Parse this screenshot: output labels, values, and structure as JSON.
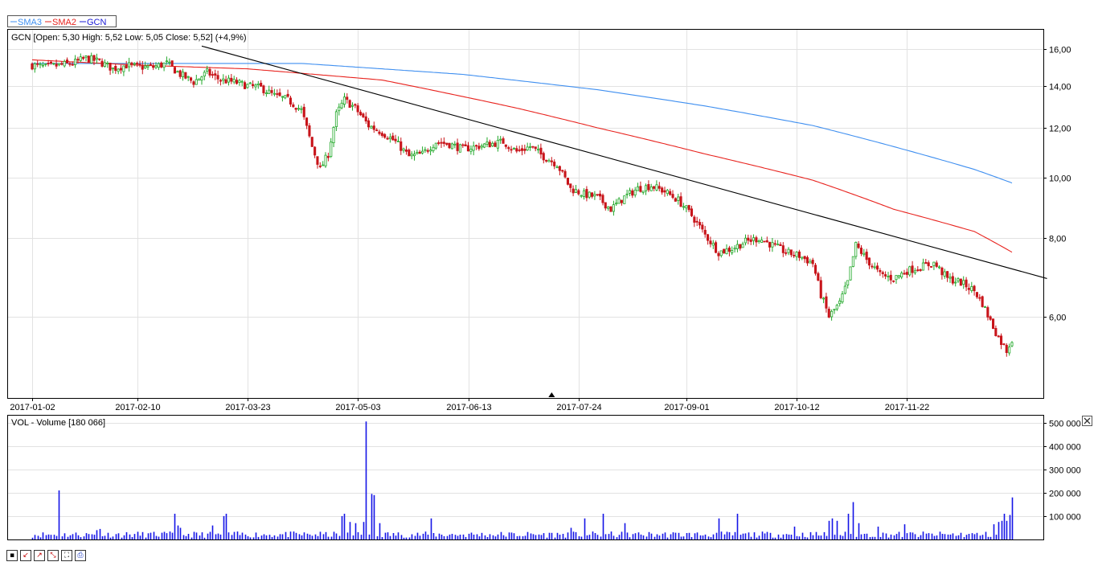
{
  "legend": {
    "items": [
      {
        "label": "SMA3",
        "color": "#3f8ff0"
      },
      {
        "label": "SMA2",
        "color": "#e8231e"
      },
      {
        "label": "GCN",
        "color": "#1b1bd6"
      }
    ]
  },
  "price_panel": {
    "header": "GCN [Open: 5,30  High: 5,52  Low: 5,05  Close: 5,52] (+4,9%)"
  },
  "volume_panel": {
    "header": "VOL - Volume [180 066]"
  },
  "toolbar": {
    "icons": [
      "save-icon",
      "zoom-in-icon",
      "zoom-out-icon",
      "zoom-reset-icon",
      "fit-icon",
      "print-icon"
    ]
  },
  "colors": {
    "up": "#22a82a",
    "down": "#c8141a",
    "volume": "#1414e6",
    "sma2": "#e8231e",
    "sma3": "#3f8ff0",
    "trend": "#000000",
    "grid": "#e2e2e2"
  },
  "chart_data": [
    {
      "type": "candlestick",
      "title": "GCN [Open: 5,30  High: 5,52  Low: 5,05  Close: 5,52] (+4,9%)",
      "scale": "log",
      "x_ticks": [
        "2017-01-02",
        "2017-02-10",
        "2017-03-23",
        "2017-05-03",
        "2017-06-13",
        "2017-07-24",
        "2017-09-01",
        "2017-10-12",
        "2017-11-22"
      ],
      "y_ticks": [
        "6,00",
        "8,00",
        "10,00",
        "12,00",
        "14,00",
        "16,00"
      ],
      "y_tick_values": [
        6,
        8,
        10,
        12,
        14,
        16
      ],
      "ylim": [
        4.45,
        17.2
      ],
      "close_anchors": [
        [
          0,
          15.1
        ],
        [
          5,
          15.0
        ],
        [
          10,
          15.1
        ],
        [
          15,
          15.2
        ],
        [
          20,
          15.5
        ],
        [
          25,
          15.3
        ],
        [
          30,
          14.9
        ],
        [
          35,
          15.1
        ],
        [
          40,
          15.0
        ],
        [
          45,
          15.0
        ],
        [
          50,
          15.2
        ],
        [
          55,
          14.6
        ],
        [
          60,
          14.2
        ],
        [
          65,
          14.7
        ],
        [
          70,
          14.3
        ],
        [
          75,
          14.2
        ],
        [
          80,
          14.0
        ],
        [
          85,
          13.9
        ],
        [
          90,
          13.5
        ],
        [
          95,
          13.3
        ],
        [
          100,
          12.8
        ],
        [
          104,
          11.2
        ],
        [
          107,
          10.3
        ],
        [
          110,
          10.9
        ],
        [
          113,
          12.6
        ],
        [
          116,
          13.3
        ],
        [
          120,
          12.9
        ],
        [
          125,
          12.1
        ],
        [
          130,
          11.8
        ],
        [
          135,
          11.4
        ],
        [
          140,
          10.8
        ],
        [
          145,
          10.9
        ],
        [
          150,
          11.4
        ],
        [
          155,
          11.3
        ],
        [
          160,
          11.1
        ],
        [
          165,
          11.2
        ],
        [
          170,
          11.3
        ],
        [
          175,
          11.4
        ],
        [
          180,
          11.0
        ],
        [
          185,
          11.2
        ],
        [
          190,
          10.8
        ],
        [
          195,
          10.5
        ],
        [
          200,
          9.6
        ],
        [
          205,
          9.4
        ],
        [
          210,
          9.3
        ],
        [
          215,
          8.9
        ],
        [
          220,
          9.3
        ],
        [
          225,
          9.6
        ],
        [
          230,
          9.7
        ],
        [
          235,
          9.5
        ],
        [
          240,
          9.2
        ],
        [
          245,
          8.7
        ],
        [
          250,
          8.1
        ],
        [
          255,
          7.6
        ],
        [
          260,
          7.7
        ],
        [
          265,
          7.9
        ],
        [
          270,
          8.0
        ],
        [
          275,
          7.8
        ],
        [
          280,
          7.6
        ],
        [
          285,
          7.5
        ],
        [
          290,
          7.3
        ],
        [
          293,
          6.5
        ],
        [
          296,
          6.0
        ],
        [
          300,
          6.3
        ],
        [
          303,
          6.8
        ],
        [
          306,
          7.8
        ],
        [
          310,
          7.4
        ],
        [
          315,
          7.0
        ],
        [
          320,
          6.9
        ],
        [
          325,
          7.1
        ],
        [
          330,
          7.2
        ],
        [
          335,
          7.3
        ],
        [
          340,
          6.9
        ],
        [
          345,
          6.8
        ],
        [
          350,
          6.6
        ],
        [
          353,
          6.3
        ],
        [
          356,
          5.9
        ],
        [
          359,
          5.55
        ],
        [
          362,
          5.3
        ],
        [
          364,
          5.52
        ]
      ],
      "sma2": [
        [
          0,
          15.4
        ],
        [
          40,
          15.1
        ],
        [
          80,
          14.9
        ],
        [
          130,
          14.3
        ],
        [
          180,
          12.9
        ],
        [
          210,
          12.0
        ],
        [
          250,
          10.9
        ],
        [
          290,
          9.9
        ],
        [
          320,
          8.9
        ],
        [
          350,
          8.2
        ],
        [
          364,
          7.6
        ]
      ],
      "sma3": [
        [
          0,
          15.2
        ],
        [
          100,
          15.2
        ],
        [
          160,
          14.6
        ],
        [
          210,
          13.8
        ],
        [
          250,
          13.0
        ],
        [
          290,
          12.1
        ],
        [
          320,
          11.2
        ],
        [
          350,
          10.3
        ],
        [
          364,
          9.8
        ]
      ],
      "trendline": [
        [
          63,
          16.2
        ],
        [
          377,
          6.9
        ]
      ],
      "marker_index": 193
    },
    {
      "type": "bar",
      "title": "VOL - Volume [180 066]",
      "y_ticks": [
        "100 000",
        "200 000",
        "300 000",
        "400 000",
        "500 000"
      ],
      "y_tick_values": [
        100000,
        200000,
        300000,
        400000,
        500000
      ],
      "ylim": [
        0,
        530000
      ],
      "base_volume": 22000,
      "spikes": [
        [
          10,
          210000
        ],
        [
          24,
          40000
        ],
        [
          25,
          45000
        ],
        [
          53,
          110000
        ],
        [
          54,
          60000
        ],
        [
          55,
          50000
        ],
        [
          67,
          60000
        ],
        [
          71,
          100000
        ],
        [
          72,
          110000
        ],
        [
          115,
          100000
        ],
        [
          116,
          110000
        ],
        [
          118,
          75000
        ],
        [
          120,
          70000
        ],
        [
          123,
          75000
        ],
        [
          124,
          505000
        ],
        [
          126,
          195000
        ],
        [
          127,
          190000
        ],
        [
          129,
          70000
        ],
        [
          148,
          90000
        ],
        [
          200,
          50000
        ],
        [
          205,
          90000
        ],
        [
          212,
          110000
        ],
        [
          220,
          70000
        ],
        [
          255,
          90000
        ],
        [
          262,
          110000
        ],
        [
          283,
          55000
        ],
        [
          296,
          80000
        ],
        [
          297,
          90000
        ],
        [
          299,
          80000
        ],
        [
          303,
          110000
        ],
        [
          305,
          160000
        ],
        [
          307,
          70000
        ],
        [
          314,
          55000
        ],
        [
          324,
          65000
        ],
        [
          357,
          65000
        ],
        [
          359,
          75000
        ],
        [
          360,
          80000
        ],
        [
          361,
          110000
        ],
        [
          362,
          80000
        ],
        [
          363,
          105000
        ],
        [
          364,
          180066
        ]
      ]
    }
  ]
}
